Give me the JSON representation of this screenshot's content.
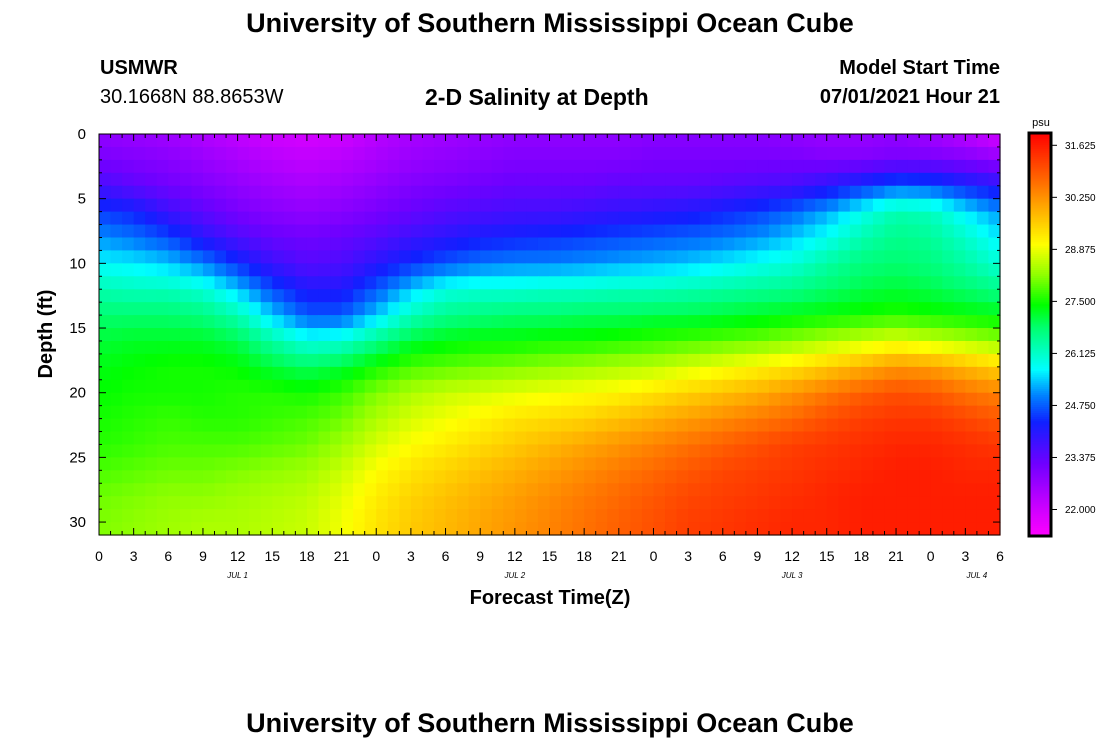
{
  "header": {
    "title": "University of Southern Mississippi Ocean Cube",
    "station": "USMWR",
    "coords": "30.1668N  88.8653W",
    "plot_title": "2-D Salinity at Depth",
    "start_label": "Model Start Time",
    "start_value": "07/01/2021 Hour 21"
  },
  "footer": {
    "title": "University of Southern Mississippi Ocean Cube"
  },
  "chart_data": {
    "type": "heatmap",
    "title": "2-D Salinity at Depth",
    "xlabel": "Forecast Time(Z)",
    "ylabel": "Depth (ft)",
    "x_hours": [
      0,
      3,
      6,
      9,
      12,
      15,
      18,
      21,
      24,
      27,
      30,
      33,
      36,
      39,
      42,
      45,
      48,
      51,
      54,
      57,
      60,
      63,
      66,
      69,
      72,
      75,
      78
    ],
    "xlim": [
      0,
      78
    ],
    "x_tick_labels": [
      "0",
      "3",
      "6",
      "9",
      "12",
      "15",
      "18",
      "21",
      "0",
      "3",
      "6",
      "9",
      "12",
      "15",
      "18",
      "21",
      "0",
      "3",
      "6",
      "9",
      "12",
      "15",
      "18",
      "21",
      "0",
      "3",
      "6"
    ],
    "day_labels": [
      {
        "label": "JUL 1",
        "hour": 12
      },
      {
        "label": "JUL 2",
        "hour": 36
      },
      {
        "label": "JUL 3",
        "hour": 60
      },
      {
        "label": "JUL 4",
        "hour": 76
      }
    ],
    "y_depths": [
      0,
      2,
      4,
      6,
      8,
      10,
      12,
      14,
      16,
      18,
      20,
      22,
      24,
      26,
      28,
      30
    ],
    "ylim": [
      0,
      31
    ],
    "y_ticks": [
      0,
      5,
      10,
      15,
      20,
      25,
      30
    ],
    "values": [
      [
        22.8,
        22.7,
        22.6,
        22.4,
        22.2,
        22.0,
        21.9,
        22.0,
        22.3,
        22.5,
        22.6,
        22.7,
        22.8,
        22.8,
        22.8,
        22.8,
        22.9,
        22.9,
        22.9,
        22.9,
        22.8,
        22.7,
        22.7,
        22.8,
        22.6,
        22.3,
        21.9
      ],
      [
        23.1,
        23.0,
        22.9,
        22.7,
        22.5,
        22.3,
        22.2,
        22.3,
        22.5,
        22.7,
        22.8,
        22.9,
        23.0,
        23.0,
        23.0,
        23.0,
        23.1,
        23.1,
        23.1,
        23.1,
        23.1,
        23.0,
        23.0,
        23.1,
        23.1,
        23.0,
        22.8
      ],
      [
        23.7,
        23.4,
        23.2,
        23.0,
        22.8,
        22.6,
        22.5,
        22.6,
        22.8,
        23.0,
        23.1,
        23.2,
        23.3,
        23.3,
        23.3,
        23.4,
        23.4,
        23.4,
        23.5,
        23.6,
        23.7,
        24.0,
        24.4,
        24.8,
        24.7,
        24.3,
        24.0
      ],
      [
        24.5,
        24.3,
        23.8,
        23.4,
        23.1,
        22.9,
        22.8,
        22.9,
        23.1,
        23.3,
        23.5,
        23.6,
        23.7,
        23.7,
        23.8,
        23.9,
        24.0,
        24.1,
        24.3,
        24.5,
        24.8,
        25.2,
        25.8,
        26.3,
        26.2,
        25.6,
        25.1
      ],
      [
        25.1,
        24.9,
        24.6,
        24.0,
        23.6,
        23.3,
        23.2,
        23.3,
        23.5,
        23.8,
        24.0,
        24.2,
        24.3,
        24.4,
        24.5,
        24.6,
        24.7,
        24.8,
        24.9,
        25.1,
        25.4,
        25.8,
        26.3,
        26.6,
        26.5,
        26.1,
        25.6
      ],
      [
        25.7,
        25.6,
        25.4,
        25.0,
        24.4,
        23.8,
        23.5,
        23.6,
        24.0,
        24.4,
        24.7,
        24.9,
        25.0,
        25.0,
        25.1,
        25.2,
        25.3,
        25.4,
        25.6,
        25.8,
        26.0,
        26.4,
        26.7,
        26.8,
        26.7,
        26.4,
        26.0
      ],
      [
        26.3,
        26.2,
        26.2,
        26.0,
        25.4,
        24.6,
        24.1,
        24.1,
        24.7,
        25.4,
        25.9,
        26.0,
        26.0,
        26.1,
        26.1,
        26.2,
        26.2,
        26.3,
        26.4,
        26.5,
        26.6,
        26.8,
        27.0,
        27.1,
        27.0,
        26.8,
        26.6
      ],
      [
        26.8,
        26.8,
        26.8,
        26.7,
        26.3,
        25.4,
        24.7,
        24.7,
        25.4,
        26.2,
        26.6,
        26.7,
        26.8,
        26.8,
        26.9,
        26.9,
        27.0,
        27.0,
        27.1,
        27.2,
        27.3,
        27.4,
        27.5,
        27.6,
        27.5,
        27.4,
        27.3
      ],
      [
        27.1,
        27.2,
        27.2,
        27.2,
        27.0,
        26.4,
        25.9,
        26.0,
        26.6,
        27.1,
        27.3,
        27.4,
        27.4,
        27.5,
        27.5,
        27.6,
        27.7,
        27.8,
        27.9,
        28.0,
        28.2,
        28.4,
        28.6,
        28.8,
        28.6,
        28.4,
        28.2
      ],
      [
        27.3,
        27.4,
        27.5,
        27.5,
        27.4,
        27.1,
        26.9,
        27.1,
        27.5,
        27.8,
        27.9,
        28.0,
        28.1,
        28.2,
        28.3,
        28.4,
        28.5,
        28.7,
        28.9,
        29.1,
        29.3,
        29.6,
        29.9,
        30.2,
        30.1,
        29.8,
        29.5
      ],
      [
        27.4,
        27.5,
        27.5,
        27.5,
        27.6,
        27.6,
        27.5,
        27.7,
        28.1,
        28.4,
        28.6,
        28.7,
        28.8,
        28.9,
        29.0,
        29.1,
        29.3,
        29.5,
        29.7,
        29.9,
        30.2,
        30.5,
        30.8,
        31.0,
        30.9,
        30.6,
        30.4
      ],
      [
        27.5,
        27.6,
        27.7,
        27.6,
        27.6,
        27.7,
        27.8,
        28.0,
        28.4,
        28.7,
        28.9,
        29.1,
        29.3,
        29.4,
        29.5,
        29.7,
        29.9,
        30.1,
        30.3,
        30.5,
        30.7,
        31.0,
        31.2,
        31.3,
        31.3,
        31.1,
        30.9
      ],
      [
        27.6,
        27.7,
        27.8,
        27.8,
        27.8,
        27.9,
        28.0,
        28.3,
        28.7,
        29.0,
        29.2,
        29.4,
        29.6,
        29.8,
        30.0,
        30.2,
        30.4,
        30.6,
        30.8,
        31.0,
        31.2,
        31.3,
        31.4,
        31.5,
        31.5,
        31.4,
        31.3
      ],
      [
        27.8,
        27.9,
        28.0,
        28.0,
        28.1,
        28.2,
        28.3,
        28.6,
        29.0,
        29.3,
        29.5,
        29.7,
        29.9,
        30.1,
        30.3,
        30.5,
        30.7,
        30.9,
        31.1,
        31.2,
        31.3,
        31.4,
        31.5,
        31.6,
        31.6,
        31.5,
        31.5
      ],
      [
        28.0,
        28.1,
        28.2,
        28.2,
        28.3,
        28.4,
        28.5,
        28.8,
        29.2,
        29.5,
        29.7,
        29.9,
        30.1,
        30.3,
        30.5,
        30.7,
        30.9,
        31.1,
        31.2,
        31.3,
        31.4,
        31.5,
        31.6,
        31.6,
        31.6,
        31.6,
        31.6
      ],
      [
        28.1,
        28.2,
        28.3,
        28.4,
        28.4,
        28.5,
        28.6,
        28.9,
        29.3,
        29.6,
        29.8,
        30.0,
        30.2,
        30.4,
        30.6,
        30.8,
        31.0,
        31.2,
        31.3,
        31.4,
        31.5,
        31.5,
        31.6,
        31.6,
        31.6,
        31.6,
        31.6
      ]
    ],
    "colorbar": {
      "unit": "psu",
      "min": 21.3,
      "max": 31.95,
      "ticks": [
        "31.625",
        "30.250",
        "28.875",
        "27.500",
        "26.125",
        "24.750",
        "23.375",
        "22.000"
      ],
      "stops": [
        {
          "v": 21.3,
          "c": "#ff00ff"
        },
        {
          "v": 22.2,
          "c": "#c000ff"
        },
        {
          "v": 23.2,
          "c": "#7000ff"
        },
        {
          "v": 24.3,
          "c": "#1020ff"
        },
        {
          "v": 25.0,
          "c": "#0080ff"
        },
        {
          "v": 25.7,
          "c": "#00ffff"
        },
        {
          "v": 26.8,
          "c": "#00ff70"
        },
        {
          "v": 27.4,
          "c": "#00ff00"
        },
        {
          "v": 28.2,
          "c": "#90ff00"
        },
        {
          "v": 29.0,
          "c": "#ffff00"
        },
        {
          "v": 29.9,
          "c": "#ffb000"
        },
        {
          "v": 30.8,
          "c": "#ff6000"
        },
        {
          "v": 31.95,
          "c": "#ff0000"
        }
      ]
    }
  }
}
